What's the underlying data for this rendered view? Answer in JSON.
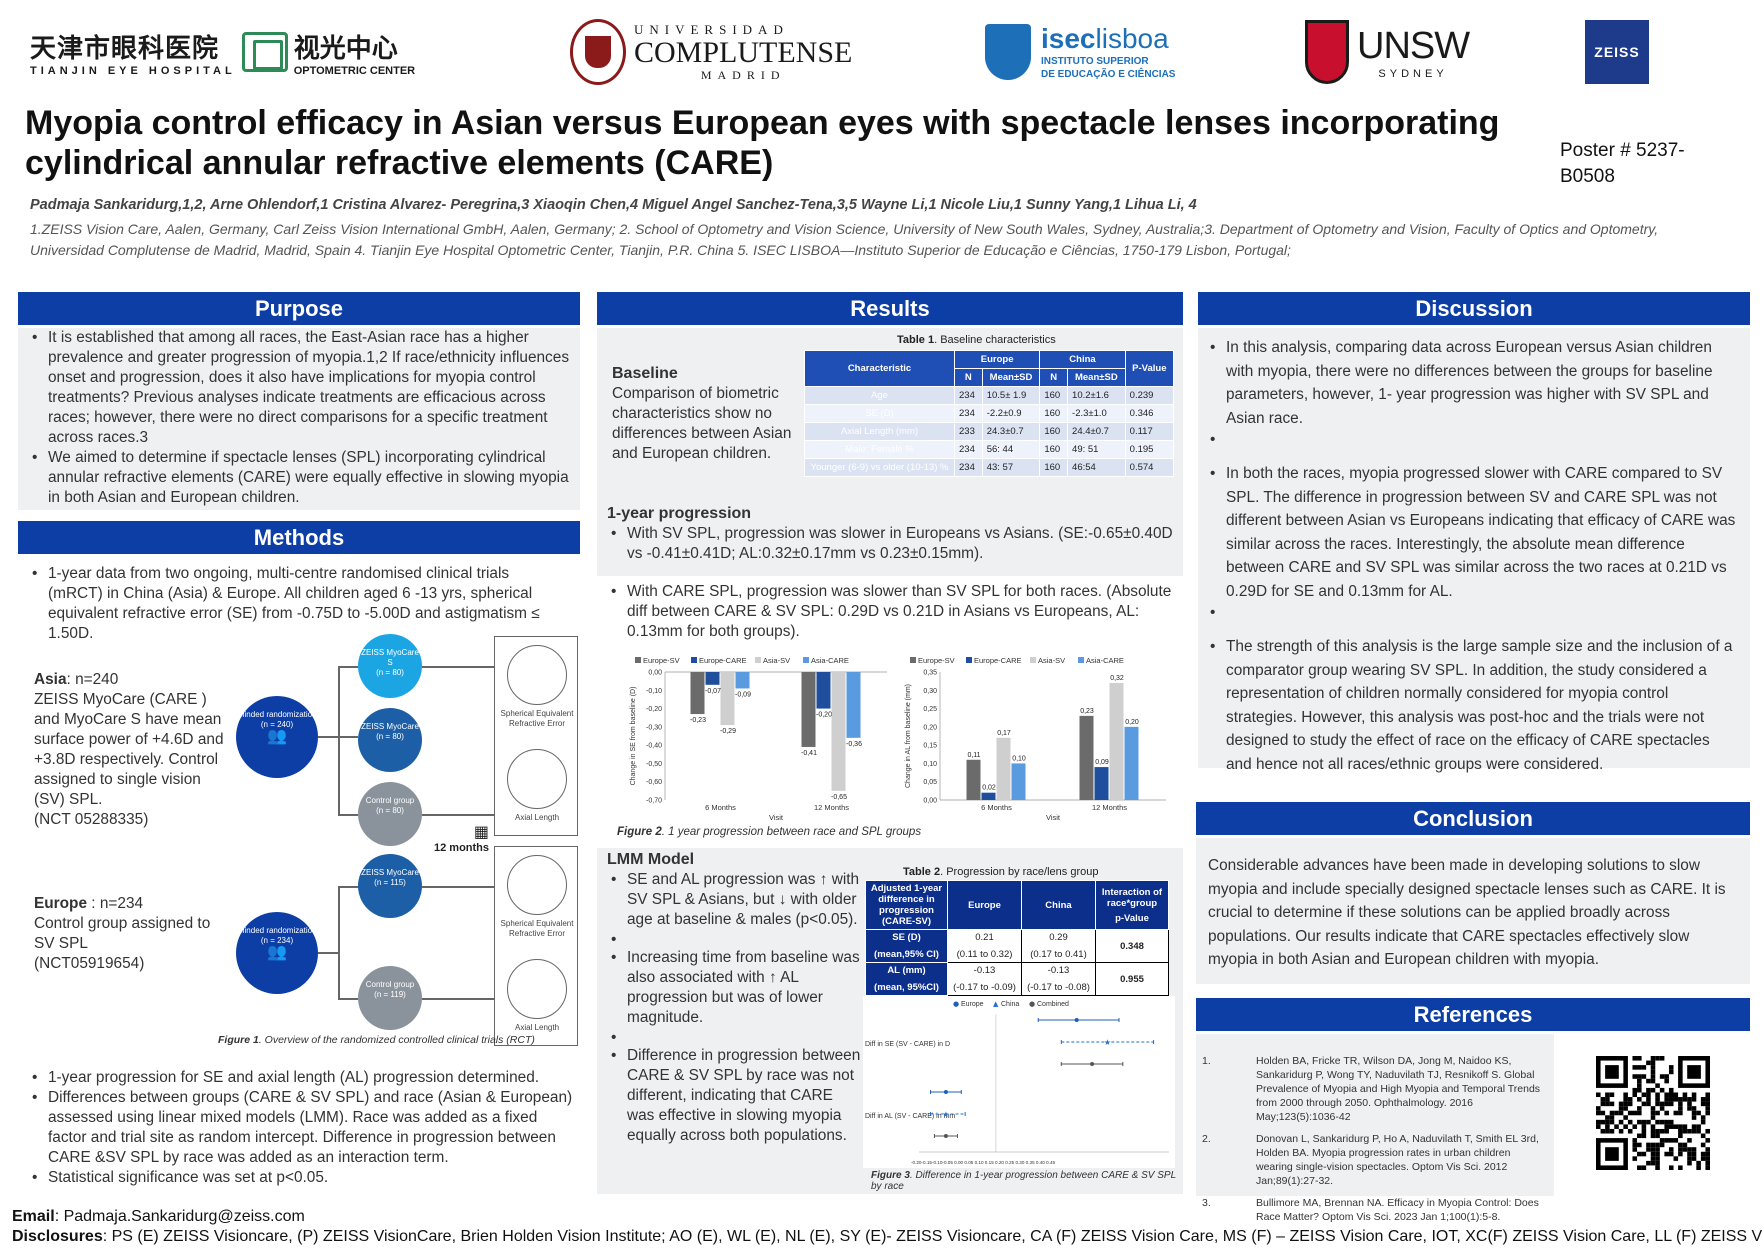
{
  "logos": {
    "tianjin_zh": "天津市眼科医院",
    "tianjin_en": "TIANJIN EYE HOSPITAL",
    "oc_zh": "视光中心",
    "oc_en": "OPTOMETRIC CENTER",
    "ucm_top": "UNIVERSIDAD",
    "ucm_mid": "COMPLUTENSE",
    "ucm_bot": "MADRID",
    "isec_a": "isec",
    "isec_b": "lisboa",
    "isec_sub1": "INSTITUTO SUPERIOR",
    "isec_sub2": "DE EDUCAÇÃO E CIÊNCIAS",
    "unsw": "UNSW",
    "unsw_sub": "SYDNEY",
    "zeiss": "ZEISS"
  },
  "title": "Myopia control efficacy in Asian versus European eyes with spectacle lenses incorporating cylindrical annular refractive elements (CARE)",
  "poster_id": "Poster # 5237-B0508",
  "authors": "Padmaja Sankaridurg,1,2, Arne Ohlendorf,1 Cristina Alvarez- Peregrina,3 Xiaoqin Chen,4  Miguel Angel Sanchez-Tena,3,5 Wayne Li,1 Nicole Liu,1 Sunny Yang,1 Lihua Li, 4",
  "affiliations": "1.ZEISS Vision Care, Aalen, Germany, Carl Zeiss Vision International GmbH, Aalen, Germany; 2. School of Optometry and Vision Science, University of New South Wales, Sydney, Australia;3. Department of Optometry and Vision, Faculty of Optics and Optometry, Universidad Complutense de Madrid, Madrid, Spain 4. Tianjin Eye Hospital Optometric Center, Tianjin, P.R. China 5. ISEC LISBOA—Instituto Superior de Educação e Ciências, 1750-179 Lisbon, Portugal;",
  "purpose": {
    "heading": "Purpose",
    "b1": "It is established that among all races, the East-Asian race has a higher prevalence and greater progression of myopia.1,2 If race/ethnicity influences onset and progression, does it also have implications for myopia control treatments? Previous analyses indicate treatments are efficacious across races; however, there were no direct comparisons for a specific treatment across races.3",
    "b2": "We aimed to determine if spectacle lenses (SPL) incorporating cylindrical annular refractive elements (CARE) were equally effective in slowing myopia in both Asian and European children."
  },
  "methods": {
    "heading": "Methods",
    "b1": "1-year data from two ongoing, multi-centre randomised clinical trials (mRCT) in China (Asia) & Europe. All children aged 6 -13 yrs, spherical equivalent refractive error (SE) from -0.75D to -5.00D and astigmatism ≤ 1.50D.",
    "asia_label": "Asia",
    "asia_n": ": n=240",
    "asia_text": "ZEISS MyoCare (CARE ) and MyoCare S have mean surface power of +4.6D and +3.8D respectively. Control assigned to single vision (SV) SPL.",
    "asia_nct": "(NCT 05288335)",
    "europe_label": "Europe",
    "europe_n": " : n=234",
    "europe_text": "Control group assigned to SV SPL",
    "europe_nct": "(NCT05919654)",
    "flow": {
      "blinded": "Blinded randomization",
      "asia_n": "(n = 240)",
      "europe_n": "(n = 234)",
      "myocare_s": "ZEISS MyoCare S",
      "myocare_s_n": "(n = 80)",
      "myocare": "ZEISS MyoCare",
      "myocare_n": "(n = 80)",
      "control": "Control group",
      "control_n": "(n = 80)",
      "eu_myocare": "ZEISS MyoCare",
      "eu_myocare_n": "(n = 115)",
      "eu_control": "Control group",
      "eu_control_n": "(n = 119)",
      "months": "12 months",
      "ser": "Spherical Equivalent Refractive Error",
      "al": "Axial Length"
    },
    "fig1_label": "Figure 1",
    "fig1_caption": ". Overview of the randomized controlled clinical trials (RCT)",
    "b2": "1-year progression for SE and axial length (AL) progression determined.",
    "b3": "Differences between groups (CARE & SV SPL) and race (Asian & European) assessed using linear mixed models (LMM). Race was added as a fixed factor and trial site as random intercept. Difference in progression between CARE &SV SPL by race was added as an interaction term.",
    "b4": "Statistical significance was set at p<0.05."
  },
  "results": {
    "heading": "Results",
    "baseline_title": "Baseline",
    "baseline_text": "Comparison of biometric characteristics show no differences between Asian and European children.",
    "table1_label": "Table 1",
    "table1_caption": ". Baseline characteristics",
    "table1": {
      "h_char": "Characteristic",
      "h_europe": "Europe",
      "h_china": "China",
      "h_p": "P-Value",
      "h_n": "N",
      "h_mean": "Mean±SD",
      "rows": [
        {
          "c": "Age",
          "en": "234",
          "em": "10.5± 1.9",
          "cn": "160",
          "cm": "10.2±1.6",
          "p": "0.239"
        },
        {
          "c": "SE (D)",
          "en": "234",
          "em": "-2.2±0.9",
          "cn": "160",
          "cm": "-2.3±1.0",
          "p": "0.346"
        },
        {
          "c": "Axial Length (mm)",
          "en": "233",
          "em": "24.3±0.7",
          "cn": "160",
          "cm": "24.4±0.7",
          "p": "0.117"
        },
        {
          "c": "Male: Female %",
          "en": "234",
          "em": "56: 44",
          "cn": "160",
          "cm": "49: 51",
          "p": "0.195"
        },
        {
          "c": "Younger (6-9) vs older (10-13) %",
          "en": "234",
          "em": "43: 57",
          "cn": "160",
          "cm": "46:54",
          "p": "0.574"
        }
      ]
    },
    "prog_title": "1-year progression",
    "prog_b1": "With SV SPL, progression was slower in Europeans vs Asians. (SE:-0.65±0.40D vs -0.41±0.41D; AL:0.32±0.17mm vs 0.23±0.15mm).",
    "prog_b2": "With CARE SPL, progression was slower than SV SPL for both races. (Absolute diff between CARE & SV SPL: 0.29D vs 0.21D in Asians vs Europeans, AL: 0.13mm for both groups).",
    "fig2_label": "Figure 2",
    "fig2_caption": ". 1 year progression between race and SPL groups",
    "lmm_title": "LMM Model",
    "lmm_b1": "SE and AL progression was ↑ with SV SPL & Asians, but ↓ with older age at baseline & males (p<0.05).",
    "lmm_b2": "Increasing time from baseline was also associated with ↑ AL progression but was of lower magnitude.",
    "lmm_b3": "Difference in progression between CARE & SV SPL by race was not different, indicating that CARE was effective in slowing myopia equally across both populations.",
    "table2_label": "Table 2",
    "table2_caption": ". Progression by race/lens group",
    "table2": {
      "h1": "Adjusted 1-year difference in progression (CARE-SV)",
      "h2": "Europe",
      "h3": "China",
      "h4a": "Interaction of race*group",
      "h4b": "p-Value",
      "se_label": "SE (D)",
      "se_label2": "(mean,95% CI)",
      "se_eu": "0.21",
      "se_eu_ci": "(0.11 to 0.32)",
      "se_cn": "0.29",
      "se_cn_ci": "(0.17 to 0.41)",
      "se_p": "0.348",
      "al_label": "AL  (mm)",
      "al_label2": "(mean, 95%CI)",
      "al_eu": "-0.13",
      "al_eu_ci": "(-0.17 to -0.09)",
      "al_cn": "-0.13",
      "al_cn_ci": "(-0.17 to -0.08)",
      "al_p": "0.955"
    },
    "fig3_label": "Figure 3",
    "fig3_caption": ". Difference  in 1-year progression between CARE & SV SPL by race"
  },
  "discussion": {
    "heading": "Discussion",
    "b1": "In this analysis, comparing data across European versus Asian children with myopia, there were no differences between the groups for baseline parameters, however, 1- year progression was higher with SV SPL and Asian race.",
    "b2": "In both the races, myopia progressed slower with CARE compared to SV SPL. The difference in progression between SV and CARE SPL was not different between Asian vs Europeans indicating that efficacy of CARE was similar across the races. Interestingly, the absolute mean difference between CARE and SV SPL was similar across the two races at 0.21D vs 0.29D for SE and 0.13mm for AL.",
    "b3": "The strength of this analysis is the large sample size and the inclusion of a comparator group wearing SV SPL. In addition, the study considered a representation of children normally considered for myopia control strategies. However, this analysis was post-hoc and the trials were not designed to study the effect of race on the efficacy of CARE spectacles and hence not all races/ethnic groups were considered."
  },
  "conclusion": {
    "heading": "Conclusion",
    "text": "Considerable advances have been made in developing solutions to slow myopia and include specially designed spectacle lenses such as CARE. It is crucial to determine if these solutions can be applied broadly across populations. Our results indicate that CARE spectacles effectively slow myopia in both Asian and European children with myopia."
  },
  "references": {
    "heading": "References",
    "items": [
      {
        "n": "1.",
        "t": "Holden BA, Fricke TR, Wilson DA, Jong M, Naidoo KS, Sankaridurg P, Wong TY, Naduvilath TJ, Resnikoff S. Global Prevalence of Myopia and High Myopia and Temporal Trends from 2000 through 2050. Ophthalmology. 2016 May;123(5):1036-42"
      },
      {
        "n": "2.",
        "t": "Donovan L, Sankaridurg P, Ho A, Naduvilath T, Smith EL 3rd, Holden BA. Myopia progression rates in urban children wearing single-vision spectacles. Optom Vis Sci. 2012 Jan;89(1):27-32."
      },
      {
        "n": "3.",
        "t": "Bullimore MA, Brennan NA. Efficacy in Myopia Control: Does Race Matter? Optom Vis Sci. 2023 Jan 1;100(1):5-8."
      }
    ]
  },
  "footer": {
    "email_label": "Email",
    "email": ": Padmaja.Sankaridurg@zeiss.com",
    "disc_label": "Disclosures",
    "disc": ":  PS (E) ZEISS Visioncare, (P)  ZEISS VisionCare, Brien Holden Vision Institute; AO (E), WL (E), NL (E), SY (E)- ZEISS Visioncare, CA (F) ZEISS Vision Care, MS (F) – ZEISS Vision Care, IOT,  XC(F) ZEISS Vision Care, LL (F) ZEISS Vision"
  },
  "chart_data": [
    {
      "type": "bar",
      "ylabel": "Change in SE from baseline (D)",
      "xlabel": "Visit",
      "categories": [
        "6 Months",
        "12 Months"
      ],
      "ylim": [
        -0.7,
        0.0
      ],
      "yticks": [
        "0,00",
        "-0,10",
        "-0,20",
        "-0,30",
        "-0,40",
        "-0,50",
        "-0,60",
        "-0,70"
      ],
      "legend": "top",
      "series": [
        {
          "name": "Europe-SV",
          "color": "#6b6b6b",
          "values": [
            -0.23,
            -0.41
          ],
          "labels": [
            "-0,23",
            "-0,41"
          ]
        },
        {
          "name": "Europe-CARE",
          "color": "#1f4e9c",
          "values": [
            -0.07,
            -0.2
          ],
          "labels": [
            "-0,07",
            "-0,20"
          ]
        },
        {
          "name": "Asia-SV",
          "color": "#cfcfcf",
          "values": [
            -0.29,
            -0.65
          ],
          "labels": [
            "-0,29",
            "-0,65"
          ]
        },
        {
          "name": "Asia-CARE",
          "color": "#5a9be0",
          "values": [
            -0.09,
            -0.36
          ],
          "labels": [
            "-0,09",
            "-0,36"
          ]
        }
      ]
    },
    {
      "type": "bar",
      "ylabel": "Change in AL from baseline (mm)",
      "xlabel": "Visit",
      "categories": [
        "6 Months",
        "12 Months"
      ],
      "ylim": [
        0.0,
        0.35
      ],
      "yticks": [
        "0,35",
        "0,30",
        "0,25",
        "0,20",
        "0,15",
        "0,10",
        "0,05",
        "0,00"
      ],
      "legend": "top",
      "series": [
        {
          "name": "Europe-SV",
          "color": "#6b6b6b",
          "values": [
            0.11,
            0.23
          ],
          "labels": [
            "0,11",
            "0,23"
          ]
        },
        {
          "name": "Europe-CARE",
          "color": "#1f4e9c",
          "values": [
            0.02,
            0.09
          ],
          "labels": [
            "0,02",
            "0,09"
          ]
        },
        {
          "name": "Asia-SV",
          "color": "#cfcfcf",
          "values": [
            0.17,
            0.32
          ],
          "labels": [
            "0,17",
            "0,32"
          ]
        },
        {
          "name": "Asia-CARE",
          "color": "#5a9be0",
          "values": [
            0.1,
            0.2
          ],
          "labels": [
            "0,10",
            "0,20"
          ]
        }
      ]
    },
    {
      "type": "scatter",
      "xlim": [
        -0.2,
        0.45
      ],
      "xticks": "-0.20-0.15-0.10-0.05 0.00 0.05 0.10 0.15 0.20 0.25 0.30 0.35 0.40 0.45",
      "legend": "top",
      "legend_items": [
        "Europe",
        "China",
        "Combined"
      ],
      "groups": [
        {
          "label": "Diff in SE (SV - CARE) in D",
          "points": [
            {
              "series": "Europe",
              "est": 0.21,
              "lo": 0.11,
              "hi": 0.32
            },
            {
              "series": "China",
              "est": 0.29,
              "lo": 0.17,
              "hi": 0.41
            },
            {
              "series": "Combined",
              "est": 0.25,
              "lo": 0.17,
              "hi": 0.33
            }
          ]
        },
        {
          "label": "Diff in AL (SV - CARE) in mm",
          "points": [
            {
              "series": "Europe",
              "est": -0.13,
              "lo": -0.17,
              "hi": -0.09
            },
            {
              "series": "China",
              "est": -0.13,
              "lo": -0.17,
              "hi": -0.08
            },
            {
              "series": "Combined",
              "est": -0.13,
              "lo": -0.16,
              "hi": -0.1
            }
          ]
        }
      ]
    }
  ]
}
